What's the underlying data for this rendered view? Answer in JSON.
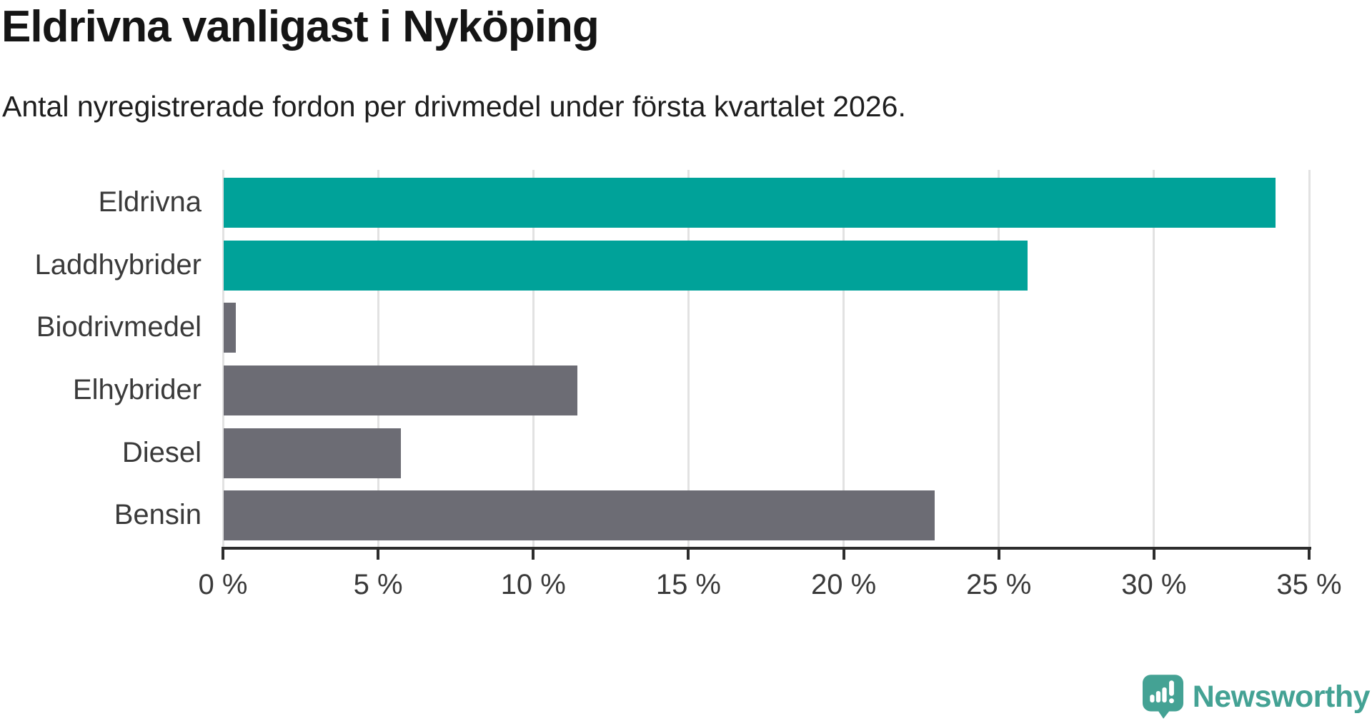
{
  "header": {
    "title": "Eldrivna vanligast i Nyköping",
    "subtitle": "Antal nyregistrerade fordon per drivmedel under första kvartalet 2026."
  },
  "chart_data": {
    "type": "bar",
    "orientation": "horizontal",
    "title": "Eldrivna vanligast i Nyköping",
    "subtitle": "Antal nyregistrerade fordon per drivmedel under första kvartalet 2026.",
    "categories": [
      "Eldrivna",
      "Laddhybrider",
      "Biodrivmedel",
      "Elhybrider",
      "Diesel",
      "Bensin"
    ],
    "values": [
      33.9,
      25.9,
      0.4,
      11.4,
      5.7,
      22.9
    ],
    "unit": "%",
    "bar_colors": [
      "#00a299",
      "#00a299",
      "#6c6c74",
      "#6c6c74",
      "#6c6c74",
      "#6c6c74"
    ],
    "xlabel": "",
    "ylabel": "",
    "xlim": [
      0,
      35
    ],
    "x_ticks": [
      0,
      5,
      10,
      15,
      20,
      25,
      30,
      35
    ],
    "x_tick_labels": [
      "0 %",
      "5 %",
      "10 %",
      "15 %",
      "20 %",
      "25 %",
      "30 %",
      "35 %"
    ],
    "grid": true,
    "legend": false
  },
  "colors": {
    "teal": "#00a299",
    "gray": "#6c6c74",
    "gridline": "#e2e2e2",
    "axis": "#2d2d2d",
    "axis_text": "#3a3a3a",
    "logo": "#44a294"
  },
  "footer": {
    "brand": "Newsworthy",
    "logo_icon": "newsworthy-speech-bubble-chart-icon"
  }
}
